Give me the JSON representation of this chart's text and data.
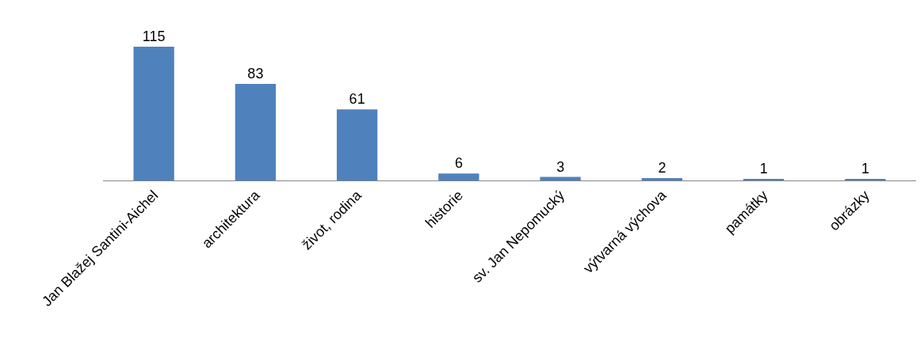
{
  "chart_data": {
    "type": "bar",
    "categories": [
      "Jan Blažej Santini-Aichel",
      "architektura",
      "život, rodina",
      "historie",
      "sv. Jan Nepomucký",
      "výtvarná výchova",
      "památky",
      "obrázky"
    ],
    "values": [
      115,
      83,
      61,
      6,
      3,
      2,
      1,
      1
    ],
    "color": "#4f81bd",
    "data_labels": true,
    "tick_labels": "x"
  }
}
